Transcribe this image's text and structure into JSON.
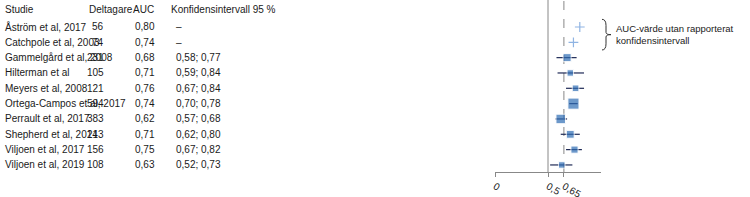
{
  "chart_data": {
    "type": "forest",
    "columns": [
      "Studie",
      "Deltagare",
      "AUC",
      "Konfidensintervall 95 %"
    ],
    "categories": [
      "Åström et al, 2017",
      "Catchpole et al, 2003",
      "Gammelgård et al, 2008",
      "Hilterman et al",
      "Meyers et al, 2008",
      "Ortega-Campos et al, 2017",
      "Perrault et al, 2017",
      "Shepherd et al, 2014",
      "Viljoen et al, 2017",
      "Viljoen et al, 2019"
    ],
    "participants": [
      56,
      74,
      231,
      105,
      121,
      594,
      383,
      213,
      156,
      108
    ],
    "values": [
      0.8,
      0.74,
      0.68,
      0.71,
      0.76,
      0.74,
      0.62,
      0.71,
      0.75,
      0.63
    ],
    "value_labels": [
      "0,80",
      "0,74",
      "0,68",
      "0,71",
      "0,76",
      "0,74",
      "0,62",
      "0,71",
      "0,75",
      "0,63"
    ],
    "ci_low": [
      null,
      null,
      0.58,
      0.59,
      0.67,
      0.7,
      0.57,
      0.62,
      0.67,
      0.52
    ],
    "ci_high": [
      null,
      null,
      0.77,
      0.84,
      0.84,
      0.78,
      0.68,
      0.8,
      0.82,
      0.73
    ],
    "ci_labels": [
      "–",
      "–",
      "0,58; 0,77",
      "0,59; 0,84",
      "0,67; 0,84",
      "0,70; 0,78",
      "0,57; 0,68",
      "0,62; 0,80",
      "0,67; 0,82",
      "0,52; 0,73"
    ],
    "reference_lines": [
      {
        "value": 0.5,
        "line_style": "solid"
      },
      {
        "value": 0.65,
        "line_style": "dashed"
      }
    ],
    "annotation": "AUC-värde utan rapporterat\nkonfidensintervall",
    "xlim": [
      0,
      1
    ],
    "xticks": [
      0,
      {
        "value": 0.5,
        "label": "0,5"
      },
      {
        "value": 0.65,
        "label": "0,65"
      }
    ],
    "color": "#2f6db5",
    "marker": "square",
    "grid": false,
    "tick_labels": "x"
  }
}
